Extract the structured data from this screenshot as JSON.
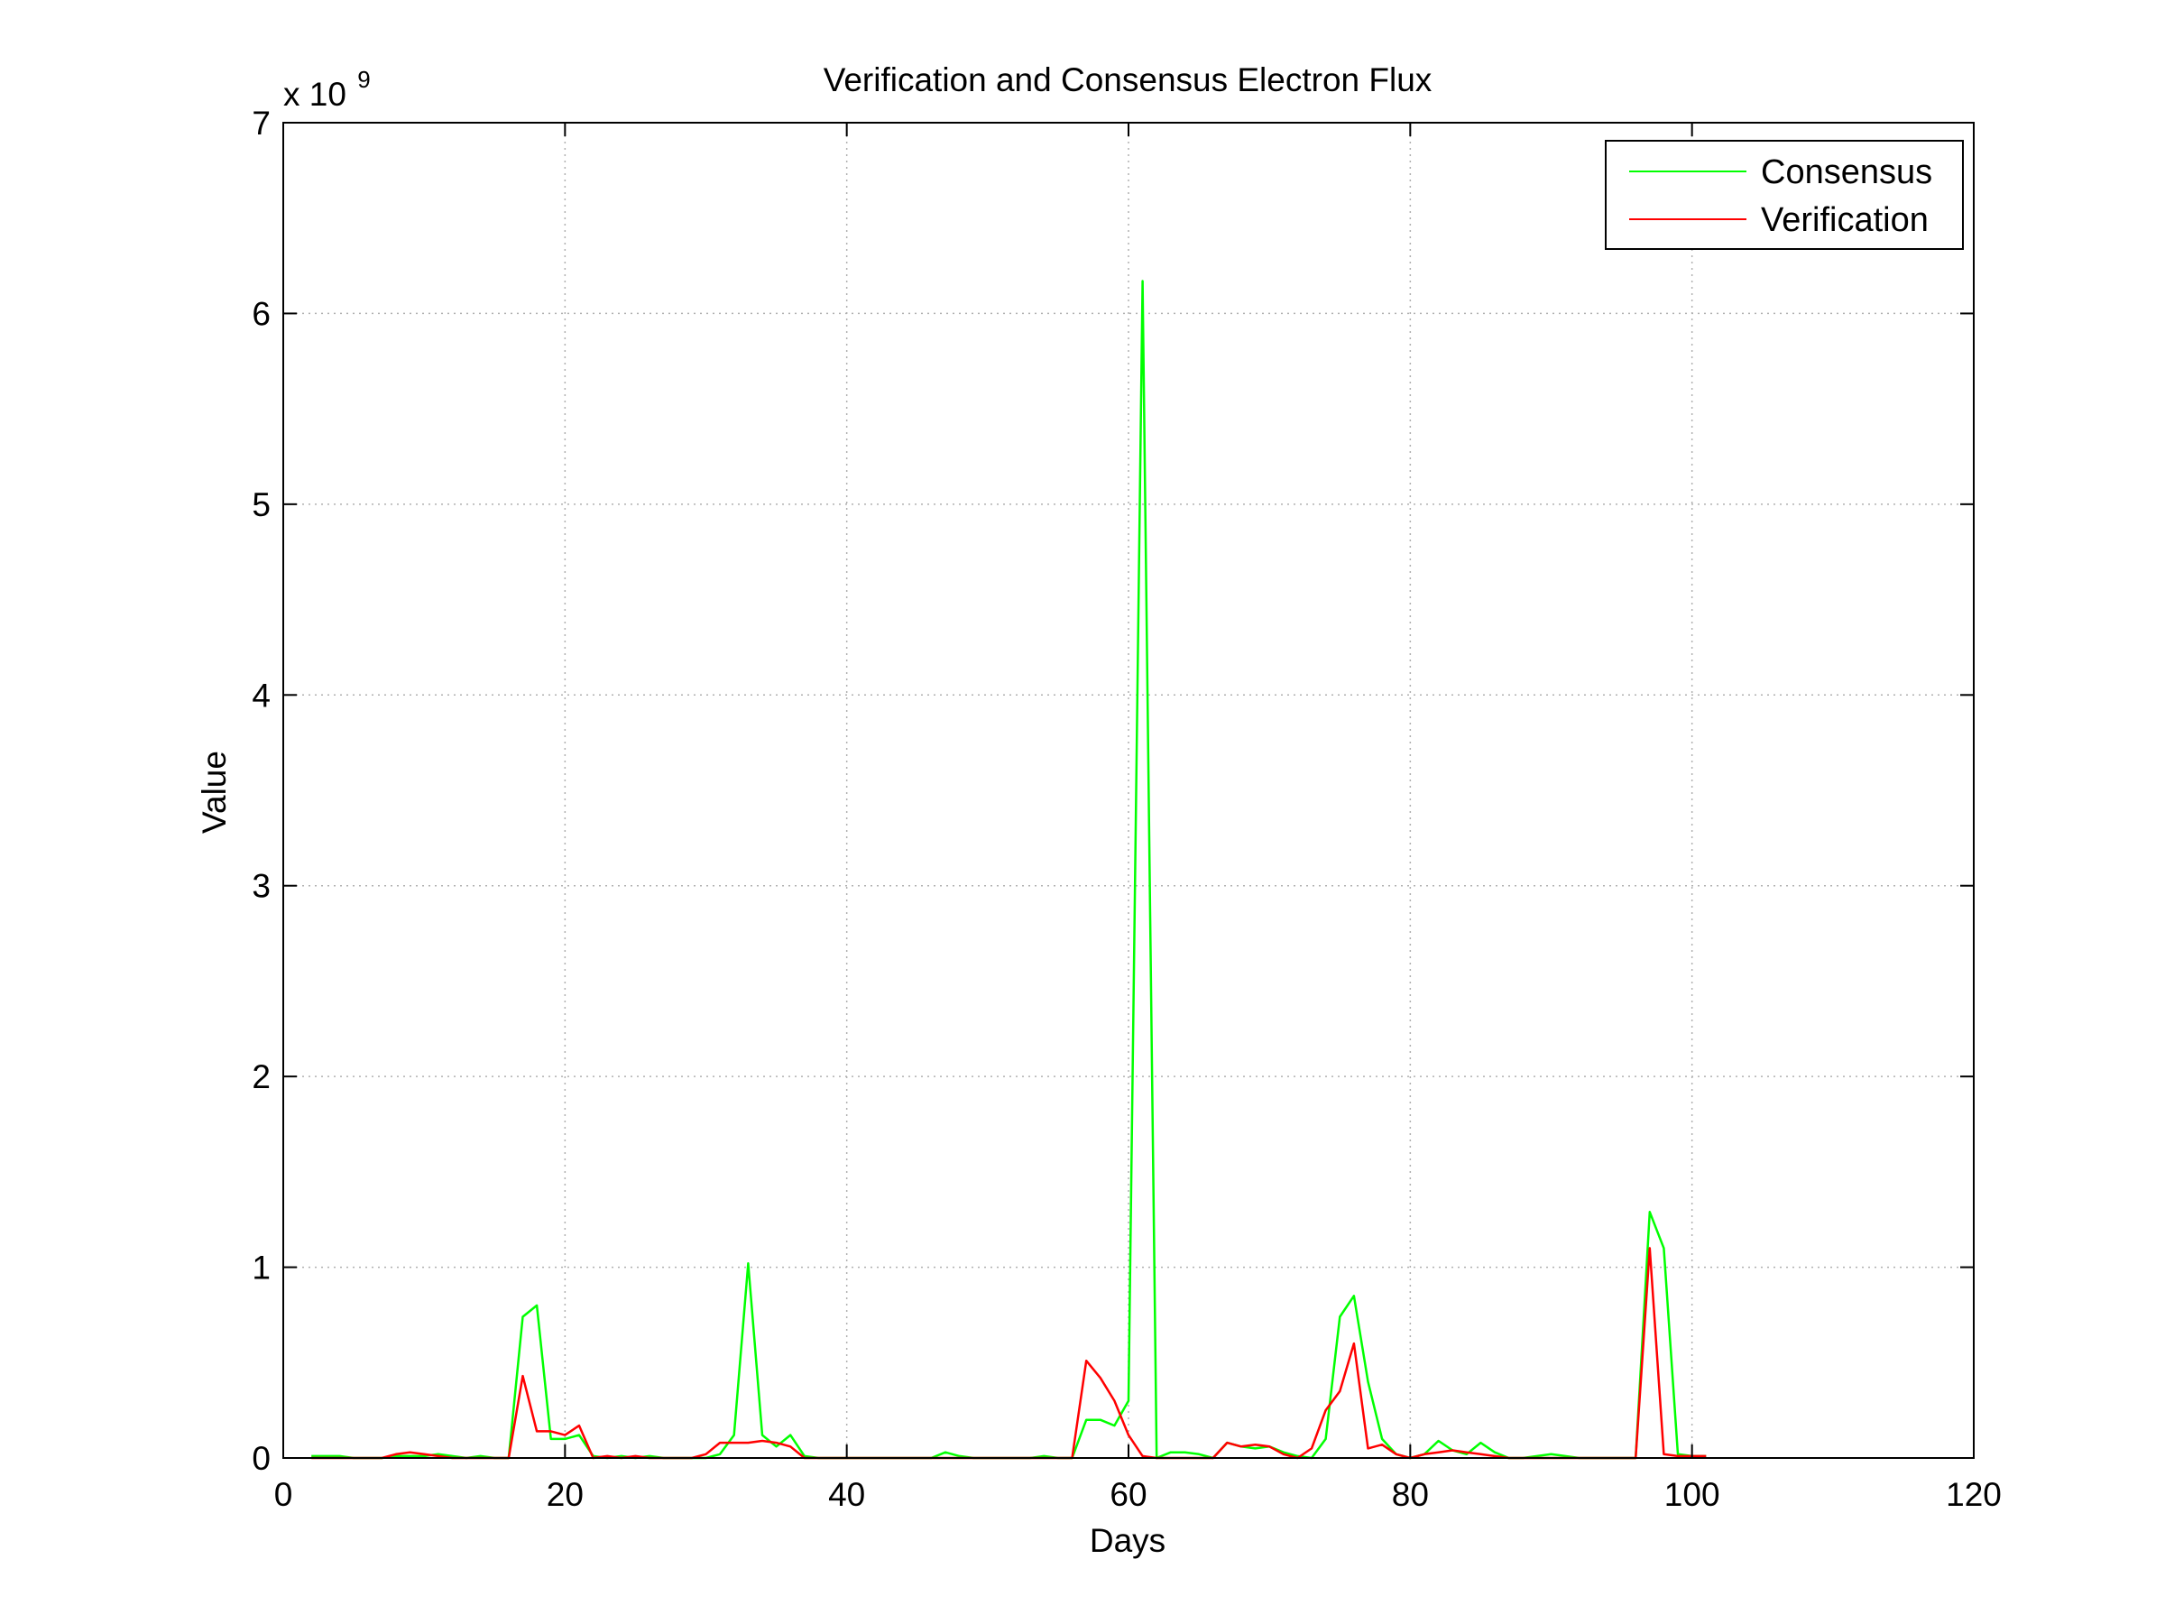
{
  "chart_data": {
    "type": "line",
    "title": "Verification and Consensus  Electron Flux",
    "xlabel": "Days",
    "ylabel": "Value",
    "xlim": [
      0,
      120
    ],
    "ylim": [
      0,
      7000000000.0
    ],
    "x_ticks": [
      0,
      20,
      40,
      60,
      80,
      100,
      120
    ],
    "y_ticks": [
      0,
      1,
      2,
      3,
      4,
      5,
      6,
      7
    ],
    "y_multiplier_base": "x 10",
    "y_multiplier_exp": "9",
    "grid": true,
    "legend_position": "top-right",
    "series": [
      {
        "name": "Consensus",
        "color": "#00ff00",
        "x": [
          2,
          3,
          4,
          5,
          6,
          7,
          8,
          9,
          10,
          11,
          12,
          13,
          14,
          15,
          16,
          17,
          18,
          19,
          20,
          21,
          22,
          23,
          24,
          25,
          26,
          27,
          28,
          29,
          30,
          31,
          32,
          33,
          34,
          35,
          36,
          37,
          38,
          39,
          40,
          41,
          42,
          43,
          44,
          45,
          46,
          47,
          48,
          49,
          50,
          51,
          52,
          53,
          54,
          55,
          56,
          57,
          58,
          59,
          60,
          61,
          62,
          63,
          64,
          65,
          66,
          67,
          68,
          69,
          70,
          71,
          72,
          73,
          74,
          75,
          76,
          77,
          78,
          79,
          80,
          81,
          82,
          83,
          84,
          85,
          86,
          87,
          88,
          89,
          90,
          91,
          92,
          93,
          94,
          95,
          96,
          97,
          98,
          99,
          100,
          101
        ],
        "y": [
          0.01,
          0.01,
          0.01,
          0.0,
          0.0,
          0.0,
          0.01,
          0.01,
          0.01,
          0.02,
          0.01,
          0.0,
          0.01,
          0.0,
          0.0,
          0.74,
          0.8,
          0.1,
          0.1,
          0.12,
          0.01,
          0.0,
          0.01,
          0.0,
          0.01,
          0.0,
          0.0,
          0.0,
          0.0,
          0.02,
          0.12,
          1.02,
          0.12,
          0.06,
          0.12,
          0.01,
          0.0,
          0.0,
          0.0,
          0.0,
          0.0,
          0.0,
          0.0,
          0.0,
          0.0,
          0.03,
          0.01,
          0.0,
          0.0,
          0.0,
          0.0,
          0.0,
          0.01,
          0.0,
          0.0,
          0.2,
          0.2,
          0.17,
          0.3,
          6.17,
          0.0,
          0.03,
          0.03,
          0.02,
          0.0,
          0.08,
          0.06,
          0.05,
          0.06,
          0.03,
          0.01,
          0.0,
          0.1,
          0.74,
          0.85,
          0.4,
          0.1,
          0.02,
          0.0,
          0.02,
          0.09,
          0.04,
          0.02,
          0.08,
          0.03,
          0.0,
          0.0,
          0.01,
          0.02,
          0.01,
          0.0,
          0.0,
          0.0,
          0.0,
          0.0,
          1.29,
          1.1,
          0.02,
          0.01,
          0.01
        ]
      },
      {
        "name": "Verification",
        "color": "#ff0000",
        "x": [
          2,
          3,
          4,
          5,
          6,
          7,
          8,
          9,
          10,
          11,
          12,
          13,
          14,
          15,
          16,
          17,
          18,
          19,
          20,
          21,
          22,
          23,
          24,
          25,
          26,
          27,
          28,
          29,
          30,
          31,
          32,
          33,
          34,
          35,
          36,
          37,
          38,
          39,
          40,
          41,
          42,
          43,
          44,
          45,
          46,
          47,
          48,
          49,
          50,
          51,
          52,
          53,
          54,
          55,
          56,
          57,
          58,
          59,
          60,
          61,
          62,
          63,
          64,
          65,
          66,
          67,
          68,
          69,
          70,
          71,
          72,
          73,
          74,
          75,
          76,
          77,
          78,
          79,
          80,
          81,
          82,
          83,
          84,
          85,
          86,
          87,
          88,
          89,
          90,
          91,
          92,
          93,
          94,
          95,
          96,
          97,
          98,
          99,
          100,
          101
        ],
        "y": [
          0.0,
          0.0,
          0.0,
          0.0,
          0.0,
          0.0,
          0.02,
          0.03,
          0.02,
          0.01,
          0.0,
          0.0,
          0.0,
          0.0,
          0.0,
          0.43,
          0.14,
          0.14,
          0.12,
          0.17,
          0.0,
          0.01,
          0.0,
          0.01,
          0.0,
          0.0,
          0.0,
          0.0,
          0.02,
          0.08,
          0.08,
          0.08,
          0.09,
          0.08,
          0.06,
          0.0,
          0.0,
          0.0,
          0.0,
          0.0,
          0.0,
          0.0,
          0.0,
          0.0,
          0.0,
          0.0,
          0.0,
          0.0,
          0.0,
          0.0,
          0.0,
          0.0,
          0.0,
          0.0,
          0.0,
          0.51,
          0.42,
          0.3,
          0.12,
          0.01,
          0.0,
          0.0,
          0.0,
          0.0,
          0.0,
          0.08,
          0.06,
          0.07,
          0.06,
          0.02,
          0.0,
          0.05,
          0.25,
          0.35,
          0.6,
          0.05,
          0.07,
          0.02,
          0.0,
          0.02,
          0.03,
          0.04,
          0.03,
          0.02,
          0.01,
          0.0,
          0.0,
          0.0,
          0.0,
          0.0,
          0.0,
          0.0,
          0.0,
          0.0,
          0.0,
          1.1,
          0.02,
          0.01,
          0.01,
          0.01
        ]
      }
    ]
  }
}
